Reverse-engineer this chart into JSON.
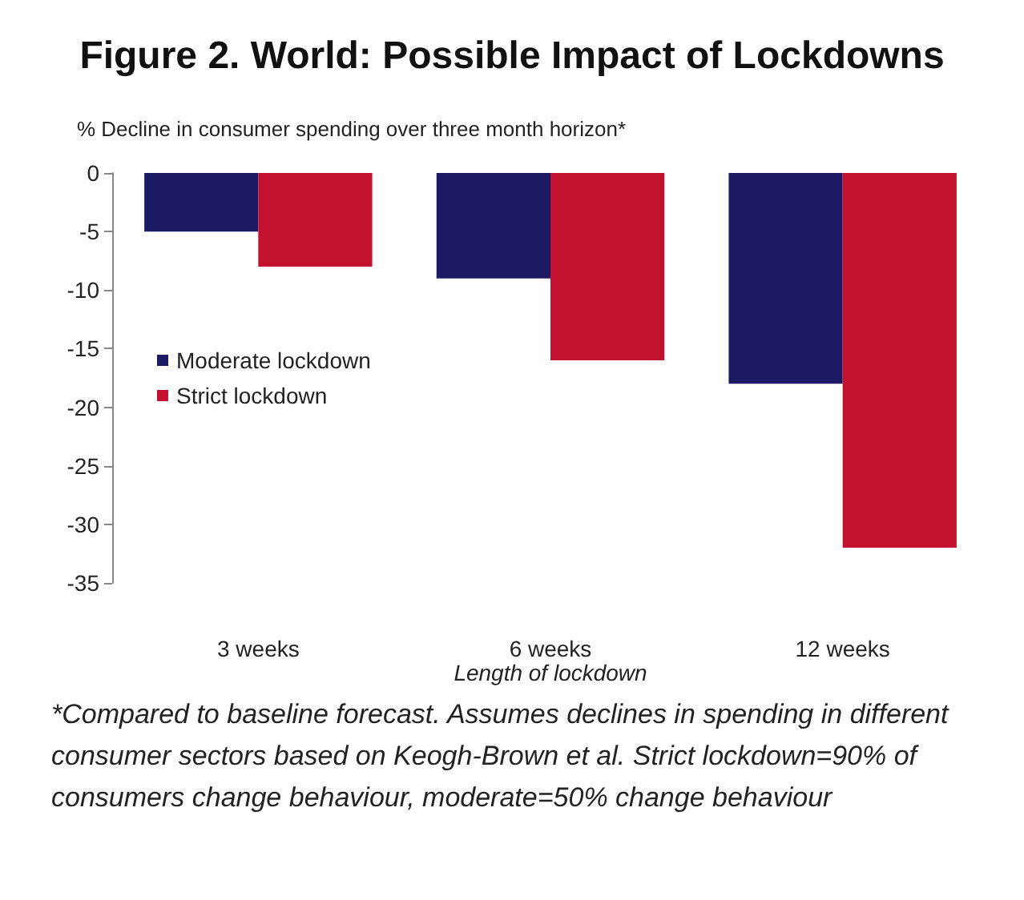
{
  "chart_data": {
    "type": "bar",
    "title": "Figure 2. World: Possible Impact of Lockdowns",
    "ylabel": "% Decline in consumer spending over three month horizon*",
    "xlabel": "Length of lockdown",
    "categories": [
      "3 weeks",
      "6 weeks",
      "12 weeks"
    ],
    "series": [
      {
        "name": "Moderate lockdown",
        "color": "#1c1a63",
        "values": [
          -5,
          -9,
          -18
        ]
      },
      {
        "name": "Strict lockdown",
        "color": "#c3122f",
        "values": [
          -8,
          -16,
          -32
        ]
      }
    ],
    "ylim": [
      -35,
      0
    ],
    "yticks": [
      -35,
      -30,
      -25,
      -20,
      -15,
      -10,
      -5,
      0
    ],
    "grid": false,
    "legend": "left",
    "annotations": [
      "*Compared to baseline forecast. Assumes declines in spending in different consumer sectors based on Keogh-Brown et al. Strict lockdown=90% of consumers change behaviour, moderate=50% change behaviour"
    ]
  }
}
